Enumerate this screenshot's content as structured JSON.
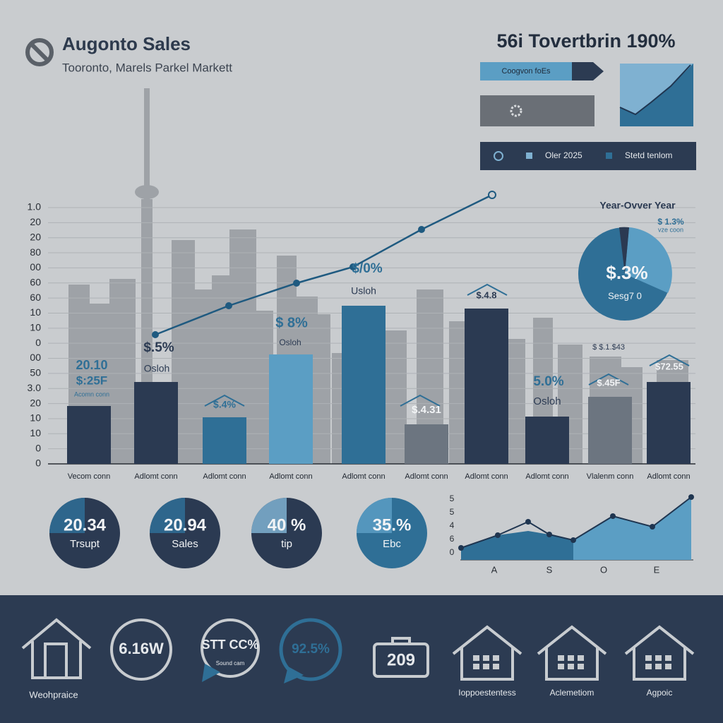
{
  "header": {
    "title": "Augonto Sales",
    "subtitle": "Tooronto, Marels Parkel Markett"
  },
  "top_panel": {
    "headline": "56i Tovertbrin 190%",
    "tab_label": "Coogvon foEs",
    "legend": [
      "Oler 2025",
      "Stetd tenlom"
    ]
  },
  "main_chart": {
    "y_axis_labels": [
      "1.0",
      "20",
      "20",
      "80",
      "00",
      "60",
      "60",
      "10",
      "10",
      "0",
      "00",
      "50",
      "3.0",
      "20",
      "10",
      "10",
      "0",
      "0"
    ],
    "categories": [
      "Vecom conn",
      "Adlomt conn",
      "Adlomt conn",
      "Adlomt conn",
      "Adlomt conn",
      "Adlomt conn",
      "Adlomt conn",
      "Adlomt conn",
      "Vlalenm conn",
      "Adlomt conn"
    ],
    "annotations": [
      "20.10",
      "$:25F",
      "Acomn conn",
      "$.5%",
      "Osloh",
      "$.4%",
      "$ 8%",
      "Osloh",
      "$/0%",
      "Usloh",
      "$.4.31",
      "$.4.8",
      "5.0%",
      "Osloh",
      "$ $.1.$43",
      "$.45F",
      "$72.55"
    ]
  },
  "yoy": {
    "title": "Year-Ovver Year",
    "small_value": "$ 1.3%",
    "small_label": "vze coon",
    "value": "$.3%",
    "label": "Sesg7 0"
  },
  "kpi_circles": [
    {
      "value": "20.34",
      "label": "Trsupt"
    },
    {
      "value": "20.94",
      "label": "Sales"
    },
    {
      "value": "40 %",
      "label": "tip"
    },
    {
      "value": "35.%",
      "label": "Ebc"
    }
  ],
  "area_chart": {
    "y_axis_labels": [
      "5",
      "5",
      "4",
      "6",
      "0"
    ],
    "x_labels": [
      "A",
      "S",
      "O",
      "E"
    ]
  },
  "footer": {
    "badges": [
      "6.16W",
      "STT CC%",
      "Sound cam",
      "92.5%",
      "209"
    ],
    "labels": [
      "Weohpraice",
      "Ioppoestentess",
      "Aclemetiom",
      "Agpoic"
    ]
  }
}
